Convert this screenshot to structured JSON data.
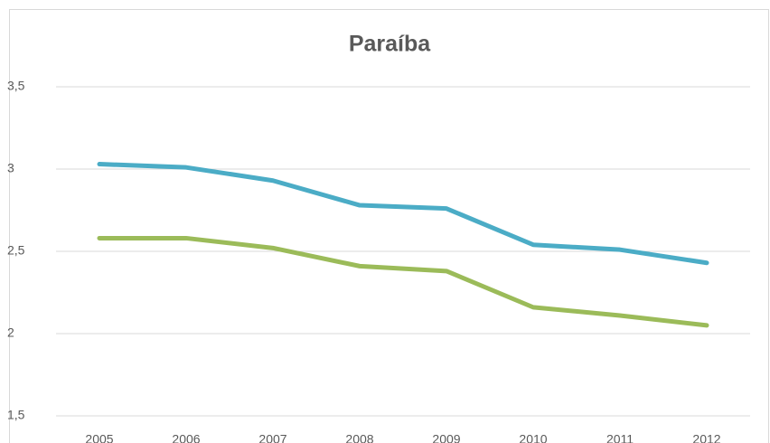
{
  "chart_data": {
    "type": "line",
    "title": "Paraíba",
    "categories": [
      "2005",
      "2006",
      "2007",
      "2008",
      "2009",
      "2010",
      "2011",
      "2012"
    ],
    "series": [
      {
        "color": "#4bacc6",
        "values": [
          3.03,
          3.01,
          2.93,
          2.78,
          2.76,
          2.54,
          2.51,
          2.43
        ]
      },
      {
        "color": "#9bbb59",
        "values": [
          2.58,
          2.58,
          2.52,
          2.41,
          2.38,
          2.16,
          2.11,
          2.05
        ]
      }
    ],
    "ylim": [
      1.5,
      3.5
    ],
    "yticks": [
      {
        "value": 1.5,
        "label": "1,5"
      },
      2,
      {
        "value": 2.5,
        "label": "2,5"
      },
      3,
      {
        "value": 3.5,
        "label": "3,5"
      }
    ],
    "grid": true
  }
}
